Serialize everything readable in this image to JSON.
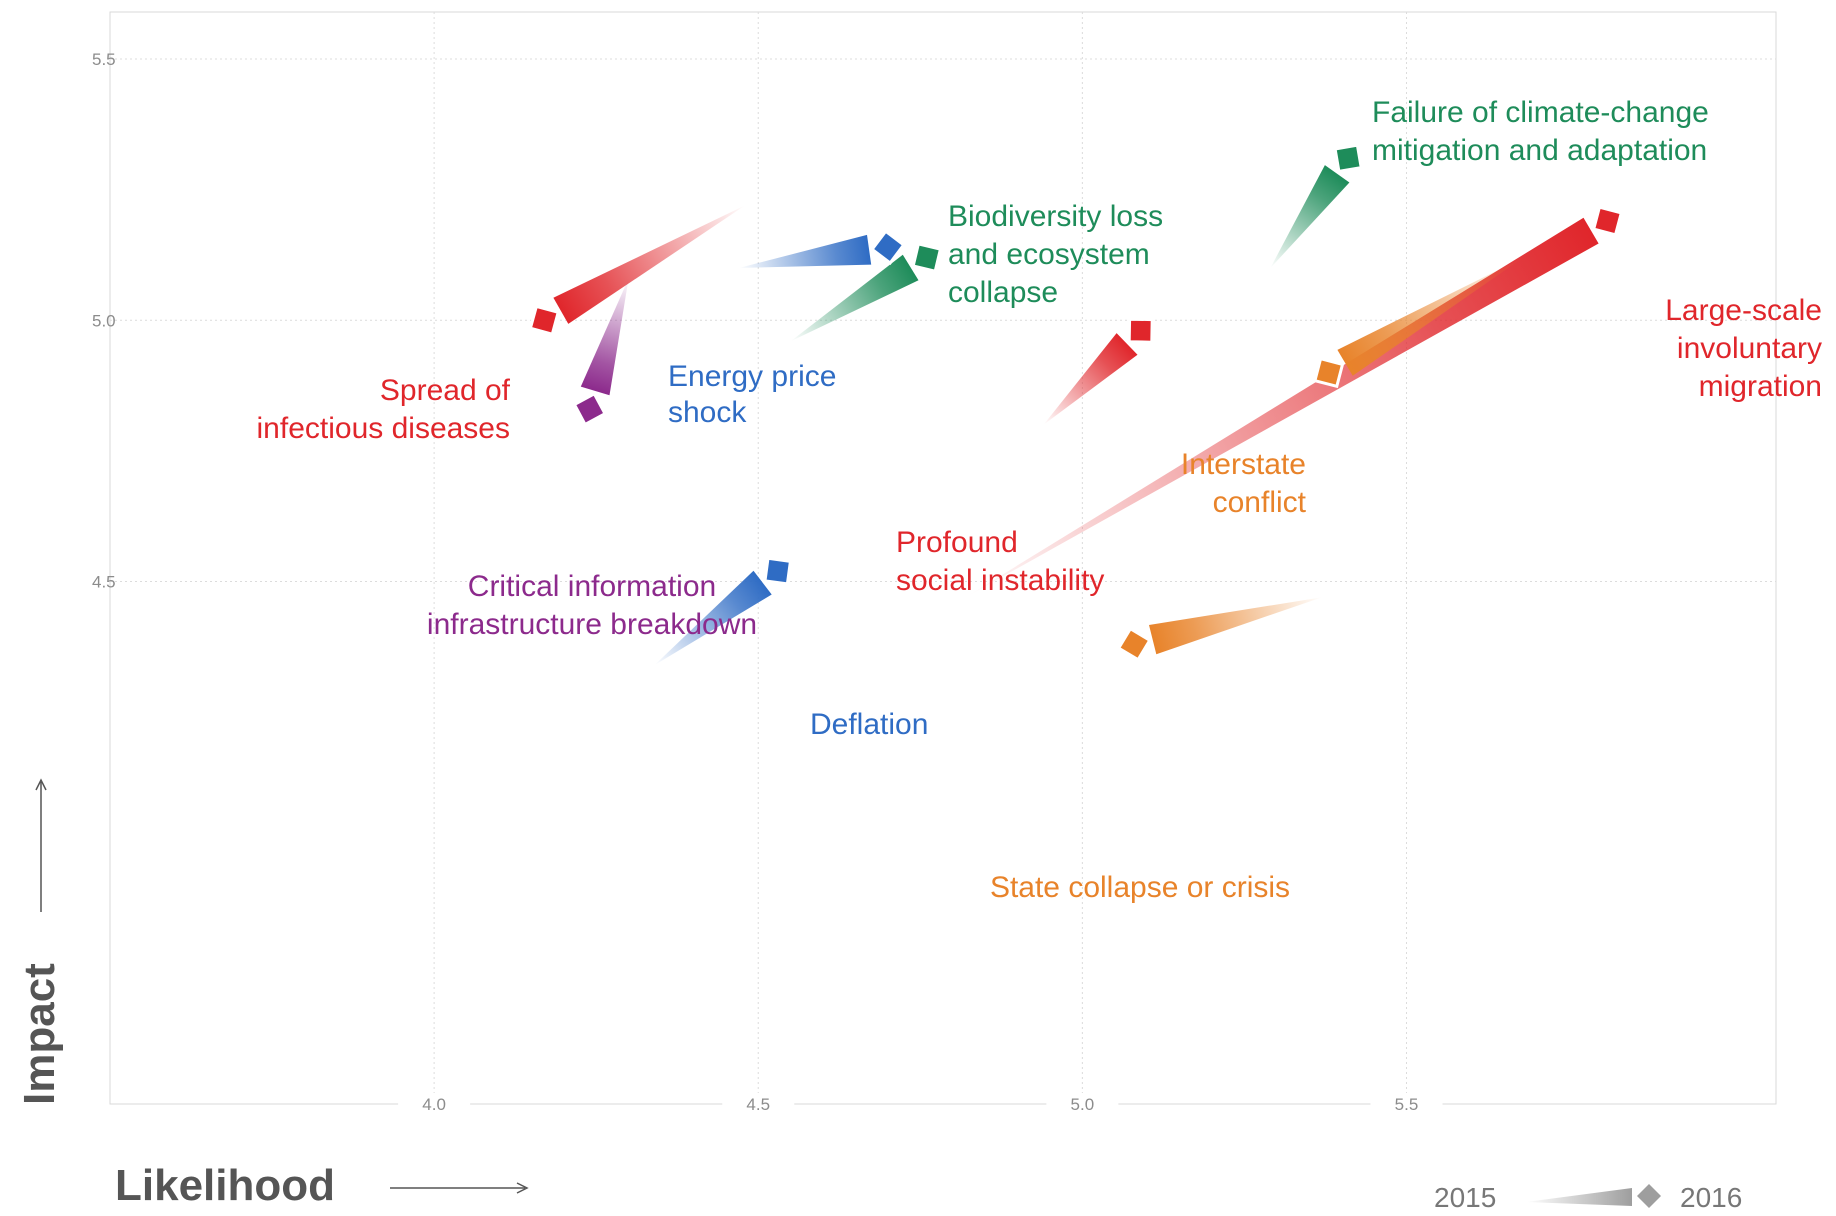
{
  "chart_data": {
    "type": "scatter",
    "title": "",
    "xlabel": "Likelihood",
    "ylabel": "Impact",
    "xlim": [
      3.5,
      6.07
    ],
    "ylim": [
      3.5,
      5.59
    ],
    "x_ticks": [
      "4.0",
      "4.5",
      "5.0",
      "5.5"
    ],
    "y_ticks": [
      "4.5",
      "5.0",
      "5.5"
    ],
    "grid": true,
    "legend": {
      "placement": "bottom-right",
      "from_label": "2015",
      "to_label": "2016",
      "color": "#9e9e9e"
    },
    "series": [
      {
        "label_lines": [
          "Failure of climate-change",
          "mitigation and adaptation"
        ],
        "color": "#1e8c5a",
        "x2015": 5.29,
        "y2015": 5.1,
        "x2016": 5.41,
        "y2016": 5.31
      },
      {
        "label_lines": [
          "Biodiversity loss",
          "and ecosystem",
          "collapse"
        ],
        "color": "#1e8c5a",
        "x2015": 4.55,
        "y2015": 4.96,
        "x2016": 4.76,
        "y2016": 5.12
      },
      {
        "label_lines": [
          "Energy price",
          "shock"
        ],
        "color": "#2f6cc4",
        "x2015": 4.47,
        "y2015": 5.1,
        "x2016": 4.7,
        "y2016": 5.14
      },
      {
        "label_lines": [
          "Spread of",
          "infectious diseases"
        ],
        "color": "#e0262b",
        "x2015": 4.48,
        "y2015": 5.22,
        "x2016": 4.17,
        "y2016": 5.0
      },
      {
        "label_lines": [
          "Critical information",
          "infrastructure breakdown"
        ],
        "color": "#8c2a8c",
        "x2015": 4.3,
        "y2015": 5.08,
        "x2016": 4.24,
        "y2016": 4.83
      },
      {
        "label_lines": [
          "Large-scale",
          "involuntary",
          "migration"
        ],
        "color": "#e0262b",
        "x2015": 4.82,
        "y2015": 4.47,
        "x2016": 5.81,
        "y2016": 5.19
      },
      {
        "label_lines": [
          "Interstate",
          "conflict"
        ],
        "color": "#e8832a",
        "x2015": 5.68,
        "y2015": 5.12,
        "x2016": 5.38,
        "y2016": 4.9
      },
      {
        "label_lines": [
          "Profound",
          "social instability"
        ],
        "color": "#e0262b",
        "x2015": 4.94,
        "y2015": 4.8,
        "x2016": 5.09,
        "y2016": 4.98
      },
      {
        "label_lines": [
          "Deflation"
        ],
        "color": "#2f6cc4",
        "x2015": 4.34,
        "y2015": 4.34,
        "x2016": 4.53,
        "y2016": 4.52
      },
      {
        "label_lines": [
          "State collapse or crisis"
        ],
        "color": "#e8832a",
        "x2015": 5.37,
        "y2015": 4.47,
        "x2016": 5.08,
        "y2016": 4.38
      }
    ]
  }
}
